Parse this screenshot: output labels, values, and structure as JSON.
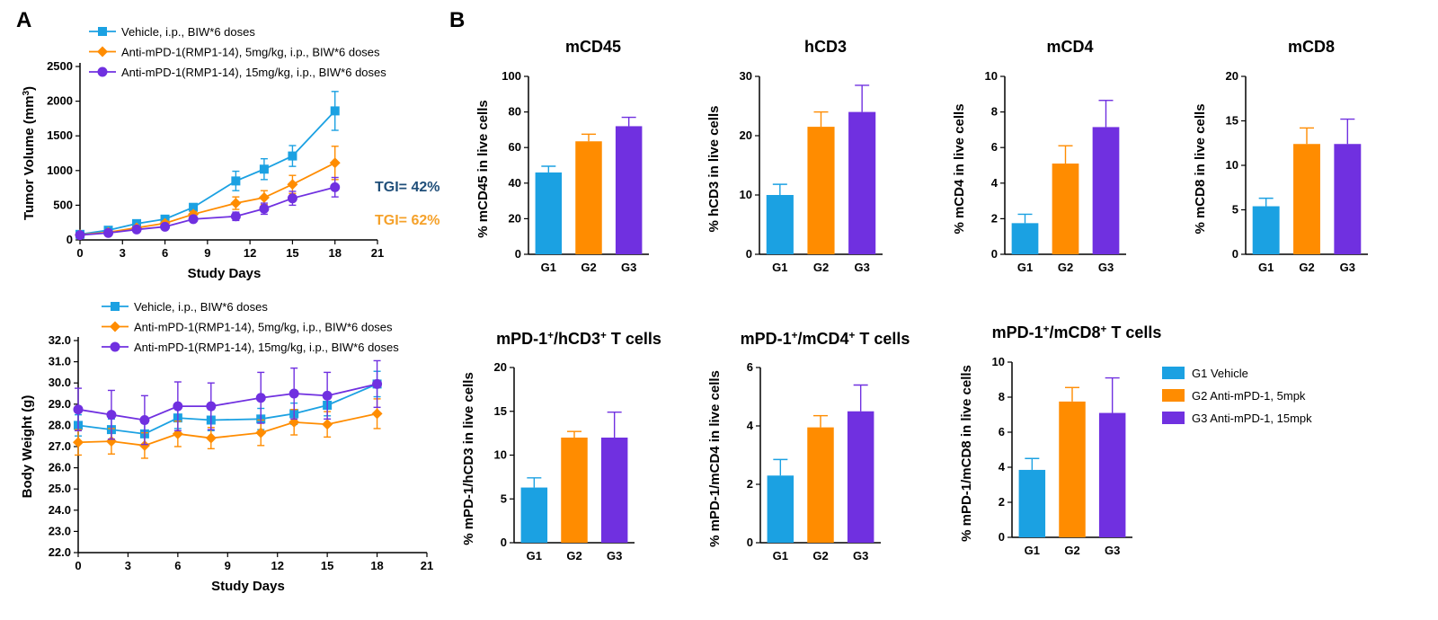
{
  "colors": {
    "g1": "#1ba1e2",
    "g2": "#ff8c00",
    "g3": "#7030e0"
  },
  "panel_labels": [
    "A",
    "B"
  ],
  "line_legend": [
    "Vehicle, i.p., BIW*6 doses",
    "Anti-mPD-1(RMP1-14), 5mg/kg, i.p., BIW*6 doses",
    "Anti-mPD-1(RMP1-14), 15mg/kg, i.p., BIW*6 doses"
  ],
  "tgi": [
    "TGI= 42%",
    "TGI= 62%"
  ],
  "bar_legend": [
    "G1 Vehicle",
    "G2 Anti-mPD-1, 5mpk",
    "G3 Anti-mPD-1, 15mpk"
  ],
  "chart_data": [
    {
      "type": "line",
      "xlabel": "Study Days",
      "ylabel": "Tumor Volume (mm³)",
      "xlim": [
        0,
        21
      ],
      "xticks": [
        0,
        3,
        6,
        9,
        12,
        15,
        18,
        21
      ],
      "ylim": [
        0,
        2500
      ],
      "yticks": [
        0,
        500,
        1000,
        1500,
        2000,
        2500
      ],
      "x": [
        0,
        2,
        4,
        6,
        8,
        11,
        13,
        15,
        18
      ],
      "series": [
        {
          "name": "Vehicle, i.p., BIW*6 doses",
          "marker": "square",
          "values": [
            80,
            140,
            235,
            300,
            470,
            850,
            1020,
            1210,
            1860
          ],
          "errors": [
            15,
            20,
            30,
            40,
            50,
            140,
            150,
            150,
            280
          ]
        },
        {
          "name": "Anti-mPD-1(RMP1-14), 5mg/kg, i.p., BIW*6 doses",
          "marker": "diamond",
          "values": [
            75,
            110,
            175,
            240,
            370,
            530,
            610,
            800,
            1110
          ],
          "errors": [
            10,
            15,
            25,
            30,
            40,
            90,
            100,
            130,
            240
          ]
        },
        {
          "name": "Anti-mPD-1(RMP1-14), 15mg/kg, i.p., BIW*6 doses",
          "marker": "circle",
          "values": [
            70,
            100,
            150,
            190,
            300,
            340,
            450,
            600,
            760
          ],
          "errors": [
            10,
            15,
            20,
            25,
            30,
            60,
            80,
            100,
            140
          ]
        }
      ]
    },
    {
      "type": "line",
      "xlabel": "Study Days",
      "ylabel": "Body Weight (g)",
      "xlim": [
        0,
        21
      ],
      "xticks": [
        0,
        3,
        6,
        9,
        12,
        15,
        18,
        21
      ],
      "ylim": [
        22,
        32
      ],
      "yticks": [
        22.0,
        23.0,
        24.0,
        25.0,
        26.0,
        27.0,
        28.0,
        29.0,
        30.0,
        31.0,
        32.0
      ],
      "x": [
        0,
        2,
        4,
        6,
        8,
        11,
        13,
        15,
        18
      ],
      "series": [
        {
          "name": "Vehicle, i.p., BIW*6 doses",
          "marker": "square",
          "values": [
            28.0,
            27.8,
            27.6,
            28.35,
            28.25,
            28.3,
            28.55,
            28.95,
            29.95
          ],
          "errors": [
            0.5,
            0.5,
            0.5,
            0.5,
            0.5,
            0.5,
            0.5,
            0.5,
            0.6
          ]
        },
        {
          "name": "Anti-mPD-1(RMP1-14), 5mg/kg, i.p., BIW*6 doses",
          "marker": "diamond",
          "values": [
            27.2,
            27.25,
            27.05,
            27.6,
            27.4,
            27.65,
            28.15,
            28.05,
            28.55
          ],
          "errors": [
            0.6,
            0.6,
            0.6,
            0.6,
            0.5,
            0.6,
            0.6,
            0.6,
            0.7
          ]
        },
        {
          "name": "Anti-mPD-1(RMP1-14), 15mg/kg, i.p., BIW*6 doses",
          "marker": "circle",
          "values": [
            28.75,
            28.5,
            28.25,
            28.9,
            28.9,
            29.3,
            29.5,
            29.4,
            29.95
          ],
          "errors": [
            1.0,
            1.15,
            1.15,
            1.15,
            1.1,
            1.2,
            1.2,
            1.1,
            1.1
          ]
        }
      ]
    },
    {
      "type": "bar",
      "title": "mCD45",
      "ylabel": "% mCD45 in live cells",
      "categories": [
        "G1",
        "G2",
        "G3"
      ],
      "values": [
        46,
        63.5,
        72
      ],
      "errors": [
        3.5,
        4,
        5
      ],
      "ylim": [
        0,
        100
      ],
      "yticks": [
        0,
        20,
        40,
        60,
        80,
        100
      ]
    },
    {
      "type": "bar",
      "title": "hCD3",
      "ylabel": "% hCD3 in live cells",
      "categories": [
        "G1",
        "G2",
        "G3"
      ],
      "values": [
        10,
        21.5,
        24
      ],
      "errors": [
        1.8,
        2.5,
        4.5
      ],
      "ylim": [
        0,
        30
      ],
      "yticks": [
        0,
        10,
        20,
        30
      ]
    },
    {
      "type": "bar",
      "title": "mCD4",
      "ylabel": "% mCD4 in live cells",
      "categories": [
        "G1",
        "G2",
        "G3"
      ],
      "values": [
        1.75,
        5.1,
        7.15
      ],
      "errors": [
        0.5,
        1.0,
        1.5
      ],
      "ylim": [
        0,
        10
      ],
      "yticks": [
        0,
        2,
        4,
        6,
        8,
        10
      ]
    },
    {
      "type": "bar",
      "title": "mCD8",
      "ylabel": "% mCD8 in live cells",
      "categories": [
        "G1",
        "G2",
        "G3"
      ],
      "values": [
        5.4,
        12.4,
        12.4
      ],
      "errors": [
        0.9,
        1.8,
        2.8
      ],
      "ylim": [
        0,
        20
      ],
      "yticks": [
        0,
        5,
        10,
        15,
        20
      ]
    },
    {
      "type": "bar",
      "title": "mPD-1⁺/hCD3⁺ T cells",
      "ylabel": "% mPD-1/hCD3 in live cells",
      "categories": [
        "G1",
        "G2",
        "G3"
      ],
      "values": [
        6.3,
        12,
        12
      ],
      "errors": [
        1.1,
        0.7,
        2.9
      ],
      "ylim": [
        0,
        20
      ],
      "yticks": [
        0,
        5,
        10,
        15,
        20
      ]
    },
    {
      "type": "bar",
      "title": "mPD-1⁺/mCD4⁺ T cells",
      "ylabel": "% mPD-1/mCD4 in live cells",
      "categories": [
        "G1",
        "G2",
        "G3"
      ],
      "values": [
        2.3,
        3.95,
        4.5
      ],
      "errors": [
        0.55,
        0.4,
        0.9
      ],
      "ylim": [
        0,
        6
      ],
      "yticks": [
        0,
        2,
        4,
        6
      ]
    },
    {
      "type": "bar",
      "title": "mPD-1⁺/mCD8⁺ T cells",
      "ylabel": "% mPD-1/mCD8 in live cells",
      "categories": [
        "G1",
        "G2",
        "G3"
      ],
      "values": [
        3.85,
        7.75,
        7.1
      ],
      "errors": [
        0.65,
        0.8,
        2.0
      ],
      "ylim": [
        0,
        10
      ],
      "yticks": [
        0,
        2,
        4,
        6,
        8,
        10
      ]
    }
  ]
}
